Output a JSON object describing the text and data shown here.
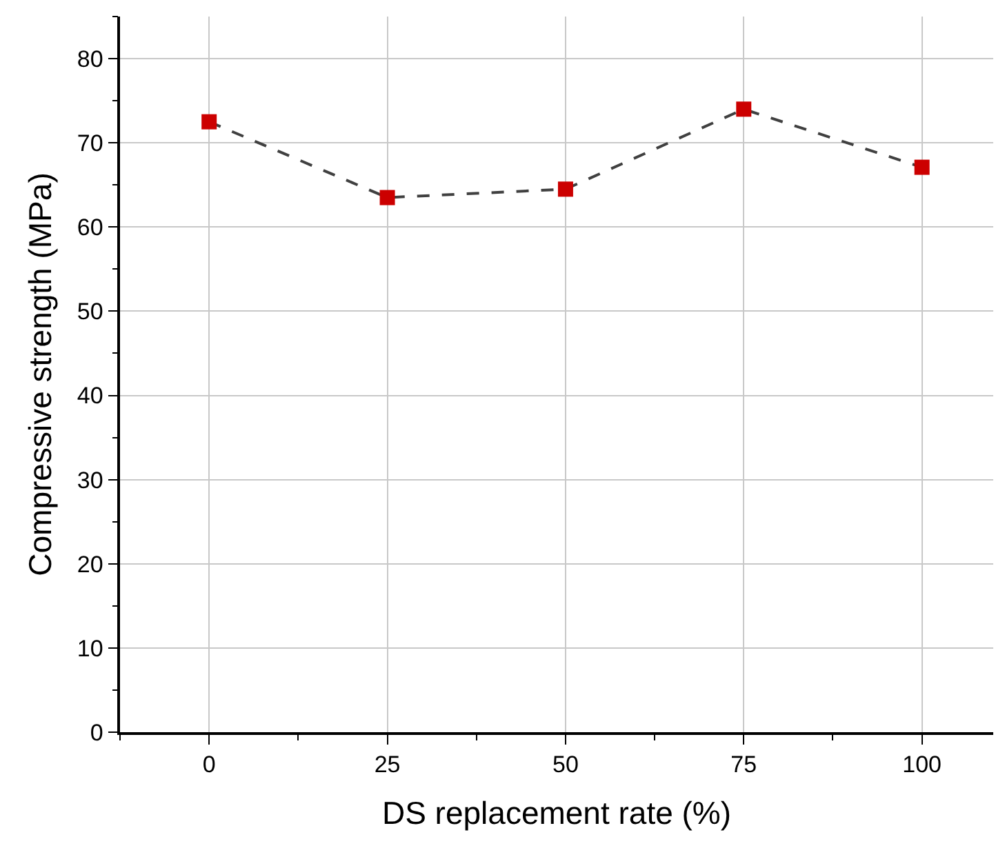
{
  "chart_data": {
    "type": "line",
    "xlabel": "DS replacement rate (%)",
    "ylabel": "Compressive strength (MPa)",
    "x": [
      0,
      25,
      50,
      75,
      100
    ],
    "series": [
      {
        "color": "#cc0000",
        "values": [
          72.5,
          63.5,
          64.5,
          74,
          67.1
        ]
      }
    ],
    "xlim": [
      -12.5,
      110
    ],
    "xticks": [
      0,
      25,
      50,
      75,
      100
    ],
    "ylim": [
      0,
      85
    ],
    "yticks": [
      0,
      10,
      20,
      30,
      40,
      50,
      60,
      70,
      80
    ],
    "grid": true,
    "marker": "square",
    "line_style": "dashed"
  }
}
